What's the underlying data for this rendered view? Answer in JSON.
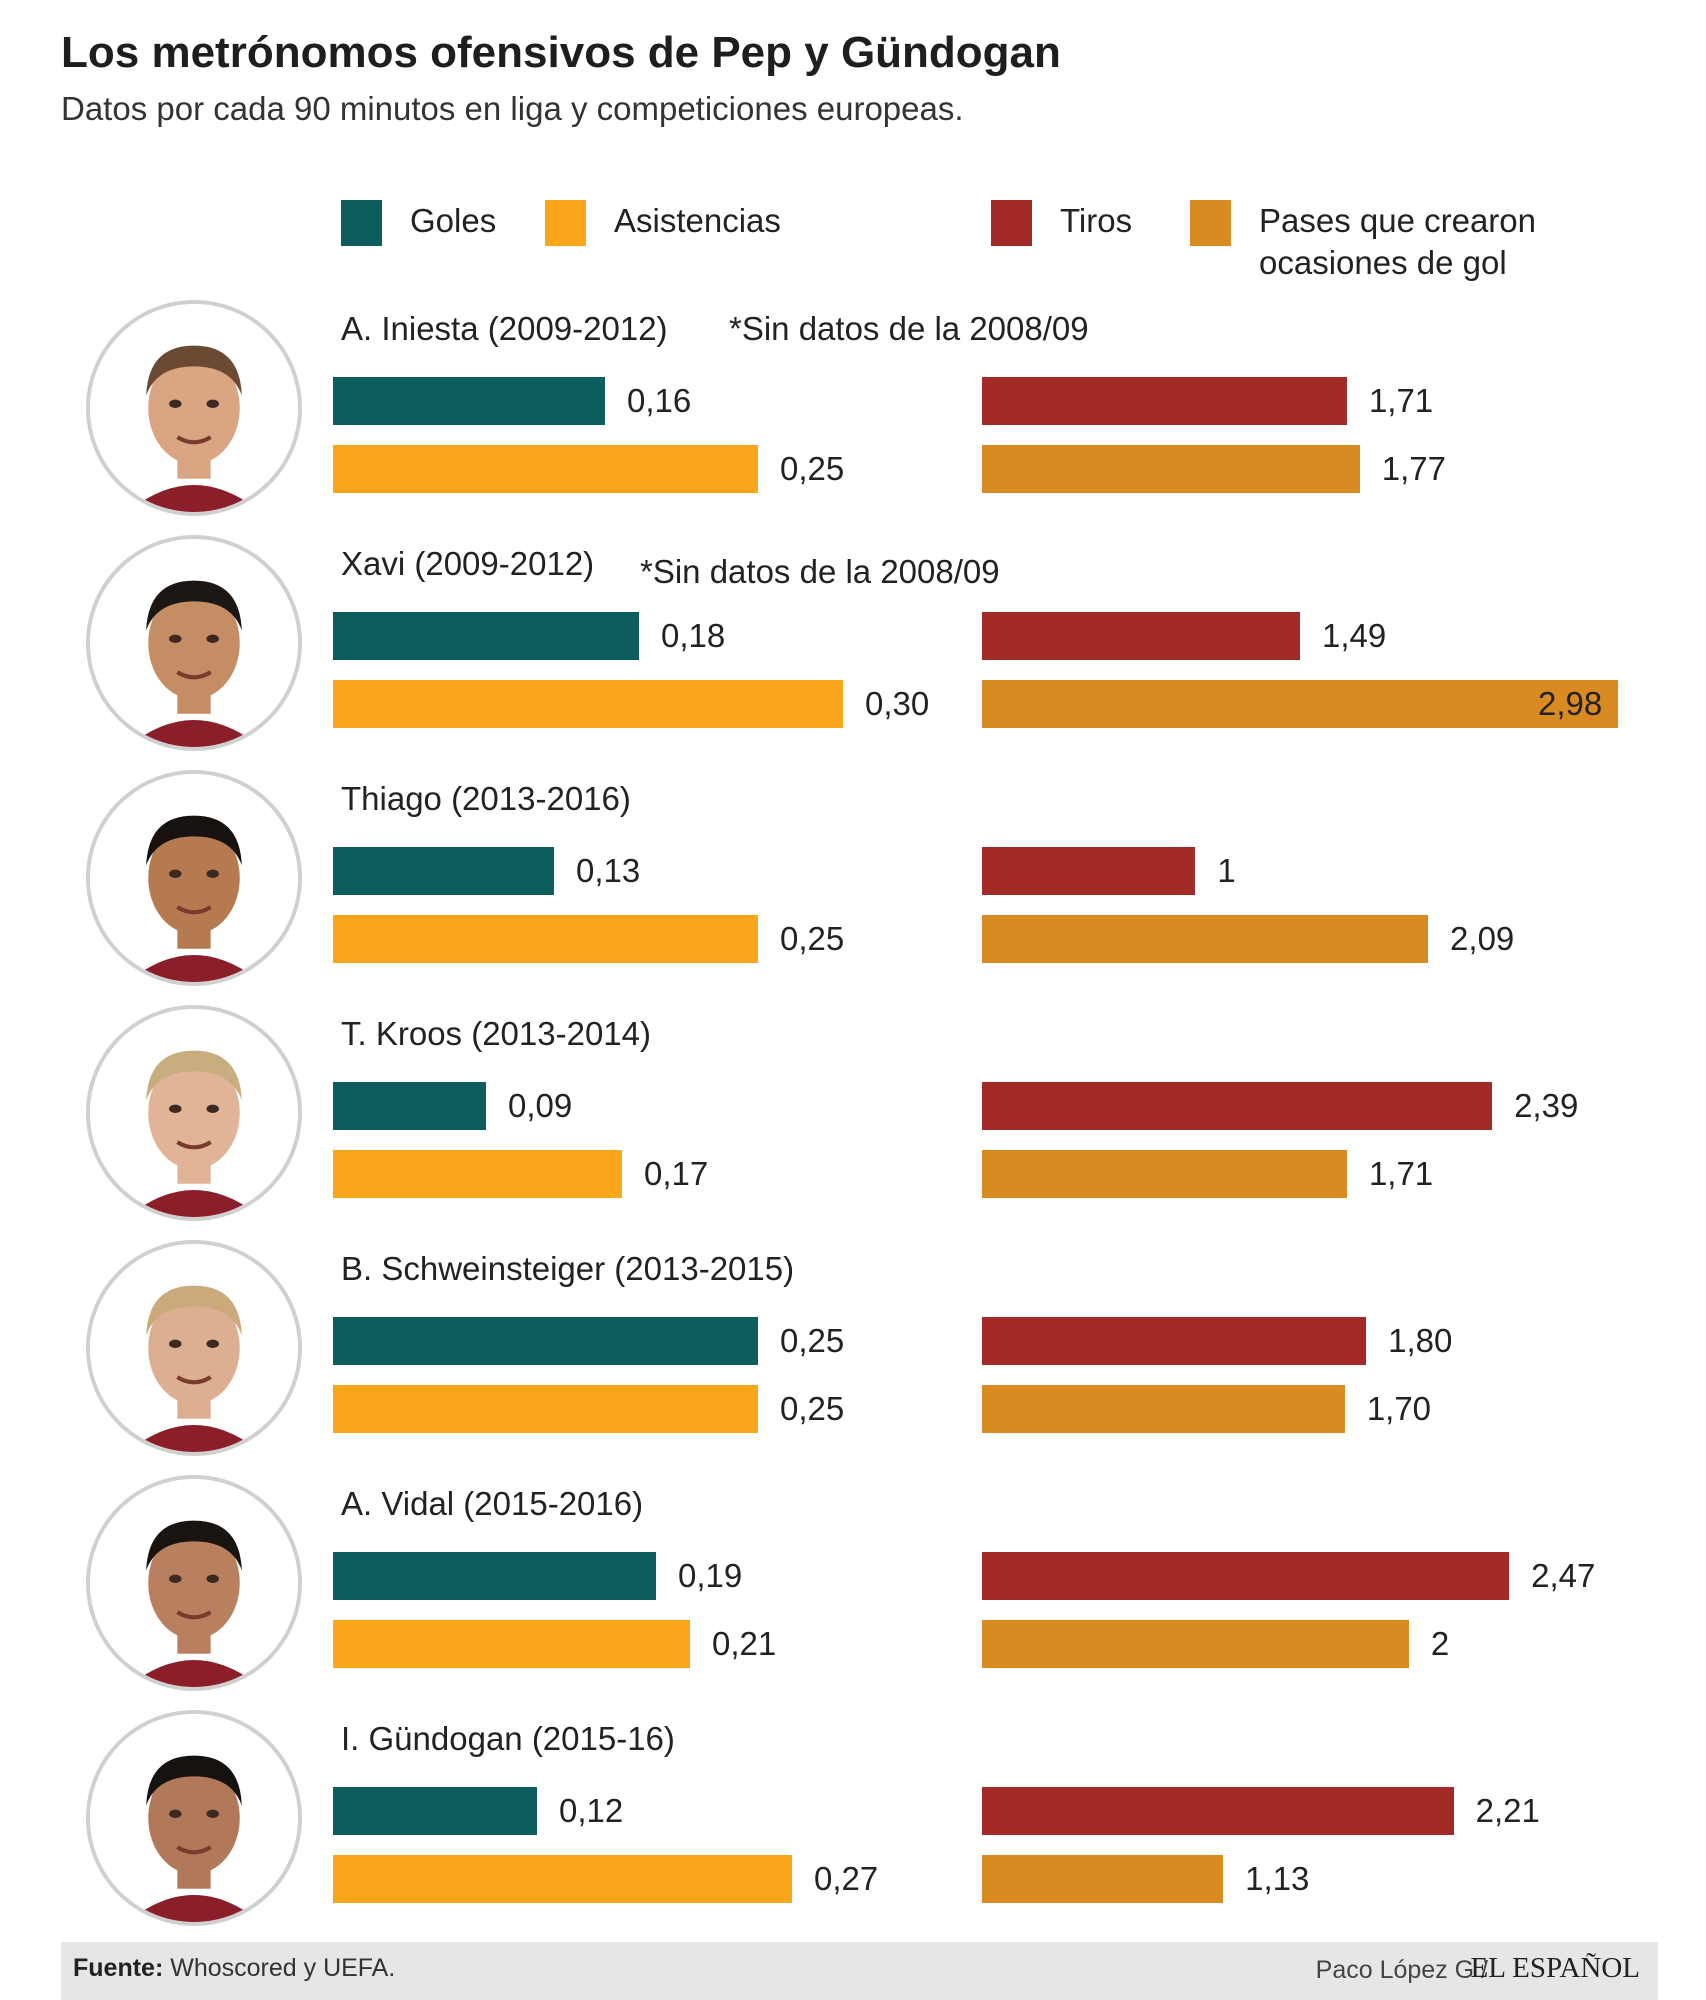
{
  "header": {
    "title": "Los metrónomos ofensivos de Pep y Gündogan",
    "subtitle": "Datos por cada 90 minutos en liga y competiciones europeas."
  },
  "legend": [
    {
      "key": "goles",
      "label": "Goles",
      "color": "#0d5c5e"
    },
    {
      "key": "asistencias",
      "label": "Asistencias",
      "color": "#faa61a"
    },
    {
      "key": "tiros",
      "label": "Tiros",
      "color": "#a22a27"
    },
    {
      "key": "pases",
      "label": "Pases que crearon\nocasiones de gol",
      "color": "#d98b22"
    }
  ],
  "chart_data": {
    "type": "bar",
    "orientation": "horizontal",
    "title": "Los metrónomos ofensivos de Pep y Gündogan",
    "subtitle": "Datos por cada 90 minutos en liga y competiciones europeas.",
    "categories": [
      "A. Iniesta (2009-2012)",
      "Xavi (2009-2012)",
      "Thiago (2013-2016)",
      "T. Kroos (2013-2014)",
      "B. Schweinsteiger (2013-2015)",
      "A. Vidal (2015-2016)",
      "I. Gündogan (2015-16)"
    ],
    "notes": [
      "*Sin datos de la 2008/09",
      "*Sin datos de la 2008/09",
      "",
      "",
      "",
      "",
      ""
    ],
    "panels": [
      {
        "name": "left",
        "series": [
          "Goles",
          "Asistencias"
        ],
        "xlim": [
          0,
          0.3
        ]
      },
      {
        "name": "right",
        "series": [
          "Tiros",
          "Pases que crearon ocasiones de gol"
        ],
        "xlim": [
          0,
          2.98
        ]
      }
    ],
    "series": [
      {
        "name": "Goles",
        "panel": "left",
        "color": "#0d5c5e",
        "values": [
          0.16,
          0.18,
          0.13,
          0.09,
          0.25,
          0.19,
          0.12
        ],
        "labels": [
          "0,16",
          "0,18",
          "0,13",
          "0,09",
          "0,25",
          "0,19",
          "0,12"
        ]
      },
      {
        "name": "Asistencias",
        "panel": "left",
        "color": "#faa61a",
        "values": [
          0.25,
          0.3,
          0.25,
          0.17,
          0.25,
          0.21,
          0.27
        ],
        "labels": [
          "0,25",
          "0,30",
          "0,25",
          "0,17",
          "0,25",
          "0,21",
          "0,27"
        ]
      },
      {
        "name": "Tiros",
        "panel": "right",
        "color": "#a22a27",
        "values": [
          1.71,
          1.49,
          1.0,
          2.39,
          1.8,
          2.47,
          2.21
        ],
        "labels": [
          "1,71",
          "1,49",
          "1",
          "2,39",
          "1,80",
          "2,47",
          "2,21"
        ]
      },
      {
        "name": "Pases que crearon ocasiones de gol",
        "panel": "right",
        "color": "#d98b22",
        "values": [
          1.77,
          2.98,
          2.09,
          1.71,
          1.7,
          2.0,
          1.13
        ],
        "labels": [
          "1,77",
          "2,98",
          "2,09",
          "1,71",
          "1,70",
          "2",
          "1,13"
        ]
      }
    ]
  },
  "footer": {
    "source_label": "Fuente:",
    "source_text": "Whoscored y UEFA.",
    "author": "Paco López G /",
    "brand": "EL ESPAÑOL"
  }
}
